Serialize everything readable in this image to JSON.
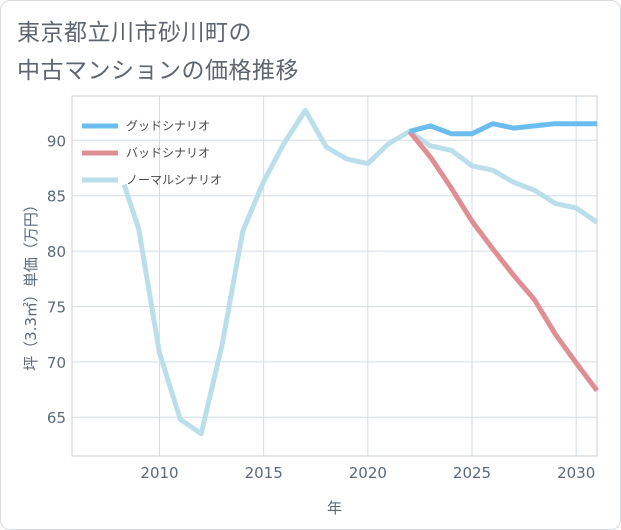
{
  "title_lines": [
    "東京都立川市砂川町の",
    "中古マンションの価格推移"
  ],
  "chart_data": {
    "type": "line",
    "xlabel": "年",
    "ylabel": "坪（3.3㎡）単価（万円）",
    "xlim": [
      2005.8,
      2031
    ],
    "ylim": [
      61.5,
      94
    ],
    "x_ticks": [
      2010,
      2015,
      2020,
      2025,
      2030
    ],
    "y_ticks": [
      65,
      70,
      75,
      80,
      85,
      90
    ],
    "grid": true,
    "legend_position": "top-left",
    "series": [
      {
        "name": "グッドシナリオ",
        "color": "#6bbdef",
        "x": [
          2022,
          2023,
          2024,
          2025,
          2026,
          2027,
          2028,
          2029,
          2030,
          2031
        ],
        "y": [
          90.8,
          91.3,
          90.6,
          90.6,
          91.5,
          91.1,
          91.3,
          91.5,
          91.5,
          91.5
        ]
      },
      {
        "name": "バッドシナリオ",
        "color": "#df8e94",
        "x": [
          2022,
          2023,
          2024,
          2025,
          2026,
          2027,
          2028,
          2029,
          2030,
          2031
        ],
        "y": [
          90.8,
          88.5,
          85.7,
          82.7,
          80.2,
          77.8,
          75.6,
          72.5,
          69.9,
          67.4
        ]
      },
      {
        "name": "ノーマルシナリオ",
        "color": "#badfeb",
        "x": [
          2008.3,
          2009,
          2010,
          2011,
          2012,
          2013,
          2014,
          2015,
          2016,
          2017,
          2018,
          2019,
          2020,
          2021,
          2022,
          2023,
          2024,
          2025,
          2026,
          2027,
          2028,
          2029,
          2030,
          2031
        ],
        "y": [
          86.0,
          82.0,
          70.8,
          64.8,
          63.5,
          71.5,
          81.8,
          86.3,
          89.8,
          92.7,
          89.4,
          88.3,
          87.9,
          89.7,
          90.8,
          89.5,
          89.1,
          87.7,
          87.3,
          86.2,
          85.5,
          84.3,
          83.9,
          82.6
        ]
      }
    ]
  }
}
